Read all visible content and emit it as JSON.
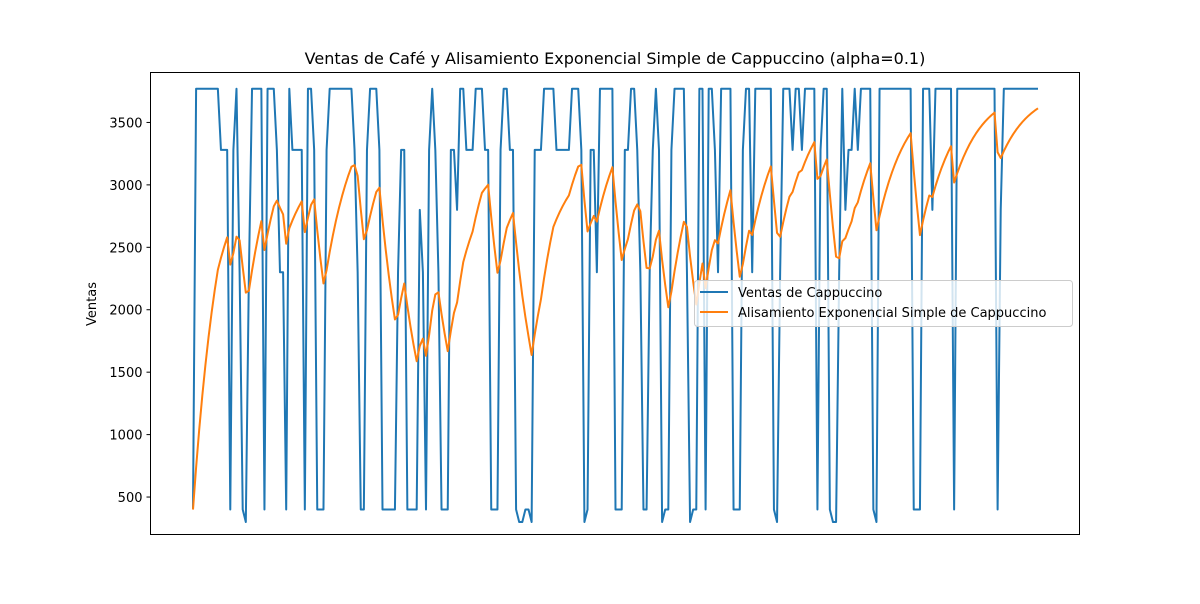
{
  "chart_data": {
    "type": "line",
    "title": "Ventas de Café y Alisamiento Exponencial Simple de Cappuccino (alpha=0.1)",
    "xlabel": "",
    "ylabel": "Ventas",
    "ylim": [
      200,
      3900
    ],
    "yticks": [
      500,
      1000,
      1500,
      2000,
      2500,
      3000,
      3500
    ],
    "x_tick_labels": "none",
    "grid": false,
    "legend_position": "center-right",
    "series": [
      {
        "name": "Ventas de Cappuccino",
        "color": "#1f77b4",
        "values": [
          400,
          3770,
          3770,
          3770,
          3770,
          3770,
          3770,
          3770,
          3770,
          3280,
          3280,
          3280,
          400,
          3280,
          3770,
          2300,
          400,
          300,
          2300,
          3770,
          3770,
          3770,
          3770,
          400,
          3770,
          3770,
          3770,
          3280,
          2300,
          2300,
          400,
          3770,
          3280,
          3280,
          3280,
          3280,
          400,
          3770,
          3770,
          3280,
          400,
          400,
          400,
          3280,
          3770,
          3770,
          3770,
          3770,
          3770,
          3770,
          3770,
          3770,
          3280,
          2300,
          400,
          400,
          3280,
          3770,
          3770,
          3770,
          3280,
          400,
          400,
          400,
          400,
          400,
          2300,
          3280,
          3280,
          400,
          400,
          400,
          400,
          2800,
          2300,
          400,
          3280,
          3770,
          3280,
          2300,
          400,
          400,
          400,
          3280,
          3280,
          2800,
          3770,
          3770,
          3280,
          3280,
          3280,
          3770,
          3770,
          3770,
          3280,
          3280,
          400,
          400,
          400,
          3280,
          3770,
          3770,
          3280,
          3280,
          400,
          300,
          300,
          400,
          400,
          300,
          3280,
          3280,
          3280,
          3770,
          3770,
          3770,
          3770,
          3280,
          3280,
          3280,
          3280,
          3280,
          3770,
          3770,
          3770,
          3280,
          300,
          400,
          3280,
          3280,
          2300,
          3770,
          3770,
          3770,
          3770,
          3770,
          400,
          400,
          400,
          3280,
          3280,
          3770,
          3770,
          3280,
          2300,
          400,
          400,
          2300,
          3280,
          3770,
          3280,
          300,
          400,
          400,
          3280,
          3770,
          3770,
          3770,
          3770,
          2300,
          300,
          400,
          400,
          3770,
          3770,
          400,
          3770,
          3770,
          3280,
          2300,
          3770,
          3770,
          3770,
          3770,
          400,
          400,
          400,
          3280,
          3770,
          3770,
          2300,
          3770,
          3770,
          3770,
          3770,
          3770,
          3770,
          400,
          300,
          2300,
          3770,
          3770,
          3770,
          3280,
          3770,
          3770,
          3280,
          3770,
          3770,
          3770,
          3770,
          400,
          3280,
          3770,
          3770,
          400,
          300,
          300,
          2300,
          3770,
          2800,
          3280,
          3280,
          3770,
          3280,
          3770,
          3770,
          3770,
          3770,
          400,
          300,
          3770,
          3770,
          3770,
          3770,
          3770,
          3770,
          3770,
          3770,
          3770,
          3770,
          3770,
          400,
          400,
          400,
          3770,
          3770,
          3770,
          2800,
          3770,
          3770,
          3770,
          3770,
          3770,
          3770,
          400,
          3770,
          3770,
          3770,
          3770,
          3770,
          3770,
          3770,
          3770,
          3770,
          3770,
          3770,
          3770,
          3770,
          400,
          2800,
          3770,
          3770,
          3770,
          3770,
          3770,
          3770,
          3770,
          3770,
          3770,
          3770,
          3770,
          3770
        ]
      },
      {
        "name": "Alisamiento Exponencial Simple de Cappuccino",
        "color": "#ff7f0e",
        "alpha": 0.1,
        "initial": 400
      }
    ]
  }
}
